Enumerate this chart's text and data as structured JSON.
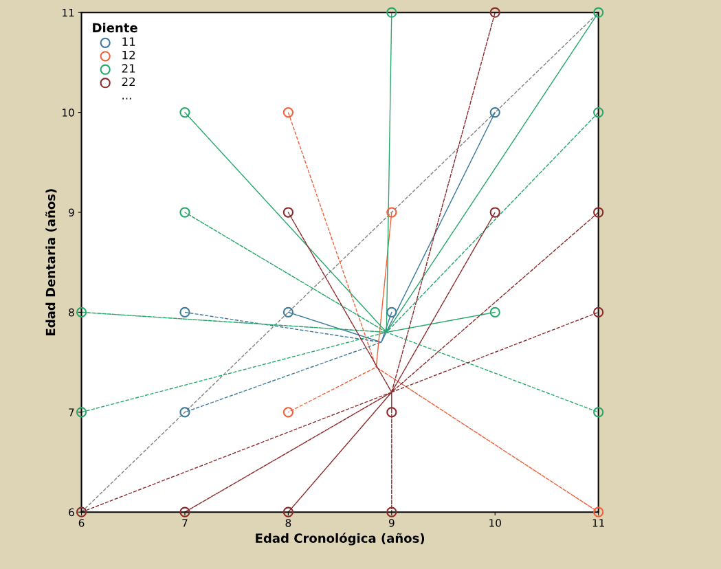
{
  "chart_data": {
    "type": "scatter",
    "xlabel": "Edad Cronológica (años)",
    "ylabel": "Edad Dentaria (años)",
    "legend_title": "Diente",
    "legend": "top left",
    "grid": false,
    "xlim": [
      6,
      11
    ],
    "ylim": [
      6,
      11
    ],
    "xticks": [
      6,
      7,
      8,
      9,
      10,
      11
    ],
    "yticks": [
      6,
      7,
      8,
      9,
      10,
      11
    ],
    "annotations": [
      "..."
    ],
    "series": [
      {
        "type": "line",
        "color": "#808080",
        "line_style": "dashed",
        "marker": "none",
        "x": [
          6,
          11
        ],
        "values": [
          6,
          11
        ]
      },
      {
        "type": "line",
        "color": "#3a7a9a",
        "line_style": "dashed",
        "marker": "none",
        "x": [
          7,
          8.9,
          8,
          8.9,
          9,
          8.9,
          10,
          8.9,
          7
        ],
        "values": [
          8,
          7.7,
          8,
          7.7,
          8,
          7.7,
          10,
          7.7,
          7
        ]
      },
      {
        "type": "line",
        "color": "#f0603a",
        "line_style": "dashed",
        "marker": "none",
        "x": [
          8,
          8.85,
          9,
          8.85,
          11,
          8.85,
          8
        ],
        "values": [
          10,
          7.45,
          9,
          7.45,
          6,
          7.45,
          7
        ]
      },
      {
        "type": "line",
        "color": "#26a86a",
        "line_style": "dashed",
        "marker": "none",
        "x": [
          6,
          8.95,
          6,
          8.95,
          7,
          8.95,
          7,
          8.95,
          9,
          8.95,
          10,
          8.95,
          11,
          8.95,
          11,
          8.95,
          11
        ],
        "values": [
          7,
          7.8,
          8,
          7.8,
          10,
          7.8,
          9,
          7.8,
          11,
          7.8,
          8,
          7.8,
          11,
          7.8,
          10,
          7.8,
          7
        ]
      },
      {
        "type": "line",
        "color": "#8a2a2a",
        "line_style": "dashed",
        "marker": "none",
        "x": [
          6,
          9,
          7,
          9,
          8,
          9,
          8,
          9,
          9,
          9,
          9,
          9,
          10,
          9,
          10,
          9,
          11,
          9,
          11
        ],
        "values": [
          6,
          7.2,
          6,
          7.2,
          9,
          7.2,
          6,
          7.2,
          7,
          7.2,
          6,
          7.2,
          11,
          7.2,
          9,
          7.2,
          9,
          7.2,
          8
        ]
      },
      {
        "name": "11",
        "color": "#3a7a9a",
        "marker": "circle",
        "x": [
          7,
          8,
          9,
          10,
          7
        ],
        "values": [
          8,
          8,
          8,
          10,
          7
        ]
      },
      {
        "name": "12",
        "color": "#f0603a",
        "marker": "circle",
        "x": [
          8,
          9,
          11,
          8
        ],
        "values": [
          10,
          9,
          6,
          7
        ]
      },
      {
        "name": "21",
        "color": "#26a86a",
        "marker": "circle",
        "x": [
          6,
          6,
          7,
          7,
          9,
          10,
          11,
          11,
          11
        ],
        "values": [
          7,
          8,
          10,
          9,
          11,
          8,
          11,
          10,
          7
        ]
      },
      {
        "name": "22",
        "color": "#8a2a2a",
        "marker": "circle",
        "x": [
          6,
          7,
          8,
          8,
          9,
          9,
          10,
          10,
          11,
          11
        ],
        "values": [
          6,
          6,
          9,
          6,
          7,
          6,
          11,
          9,
          9,
          8
        ]
      }
    ]
  }
}
